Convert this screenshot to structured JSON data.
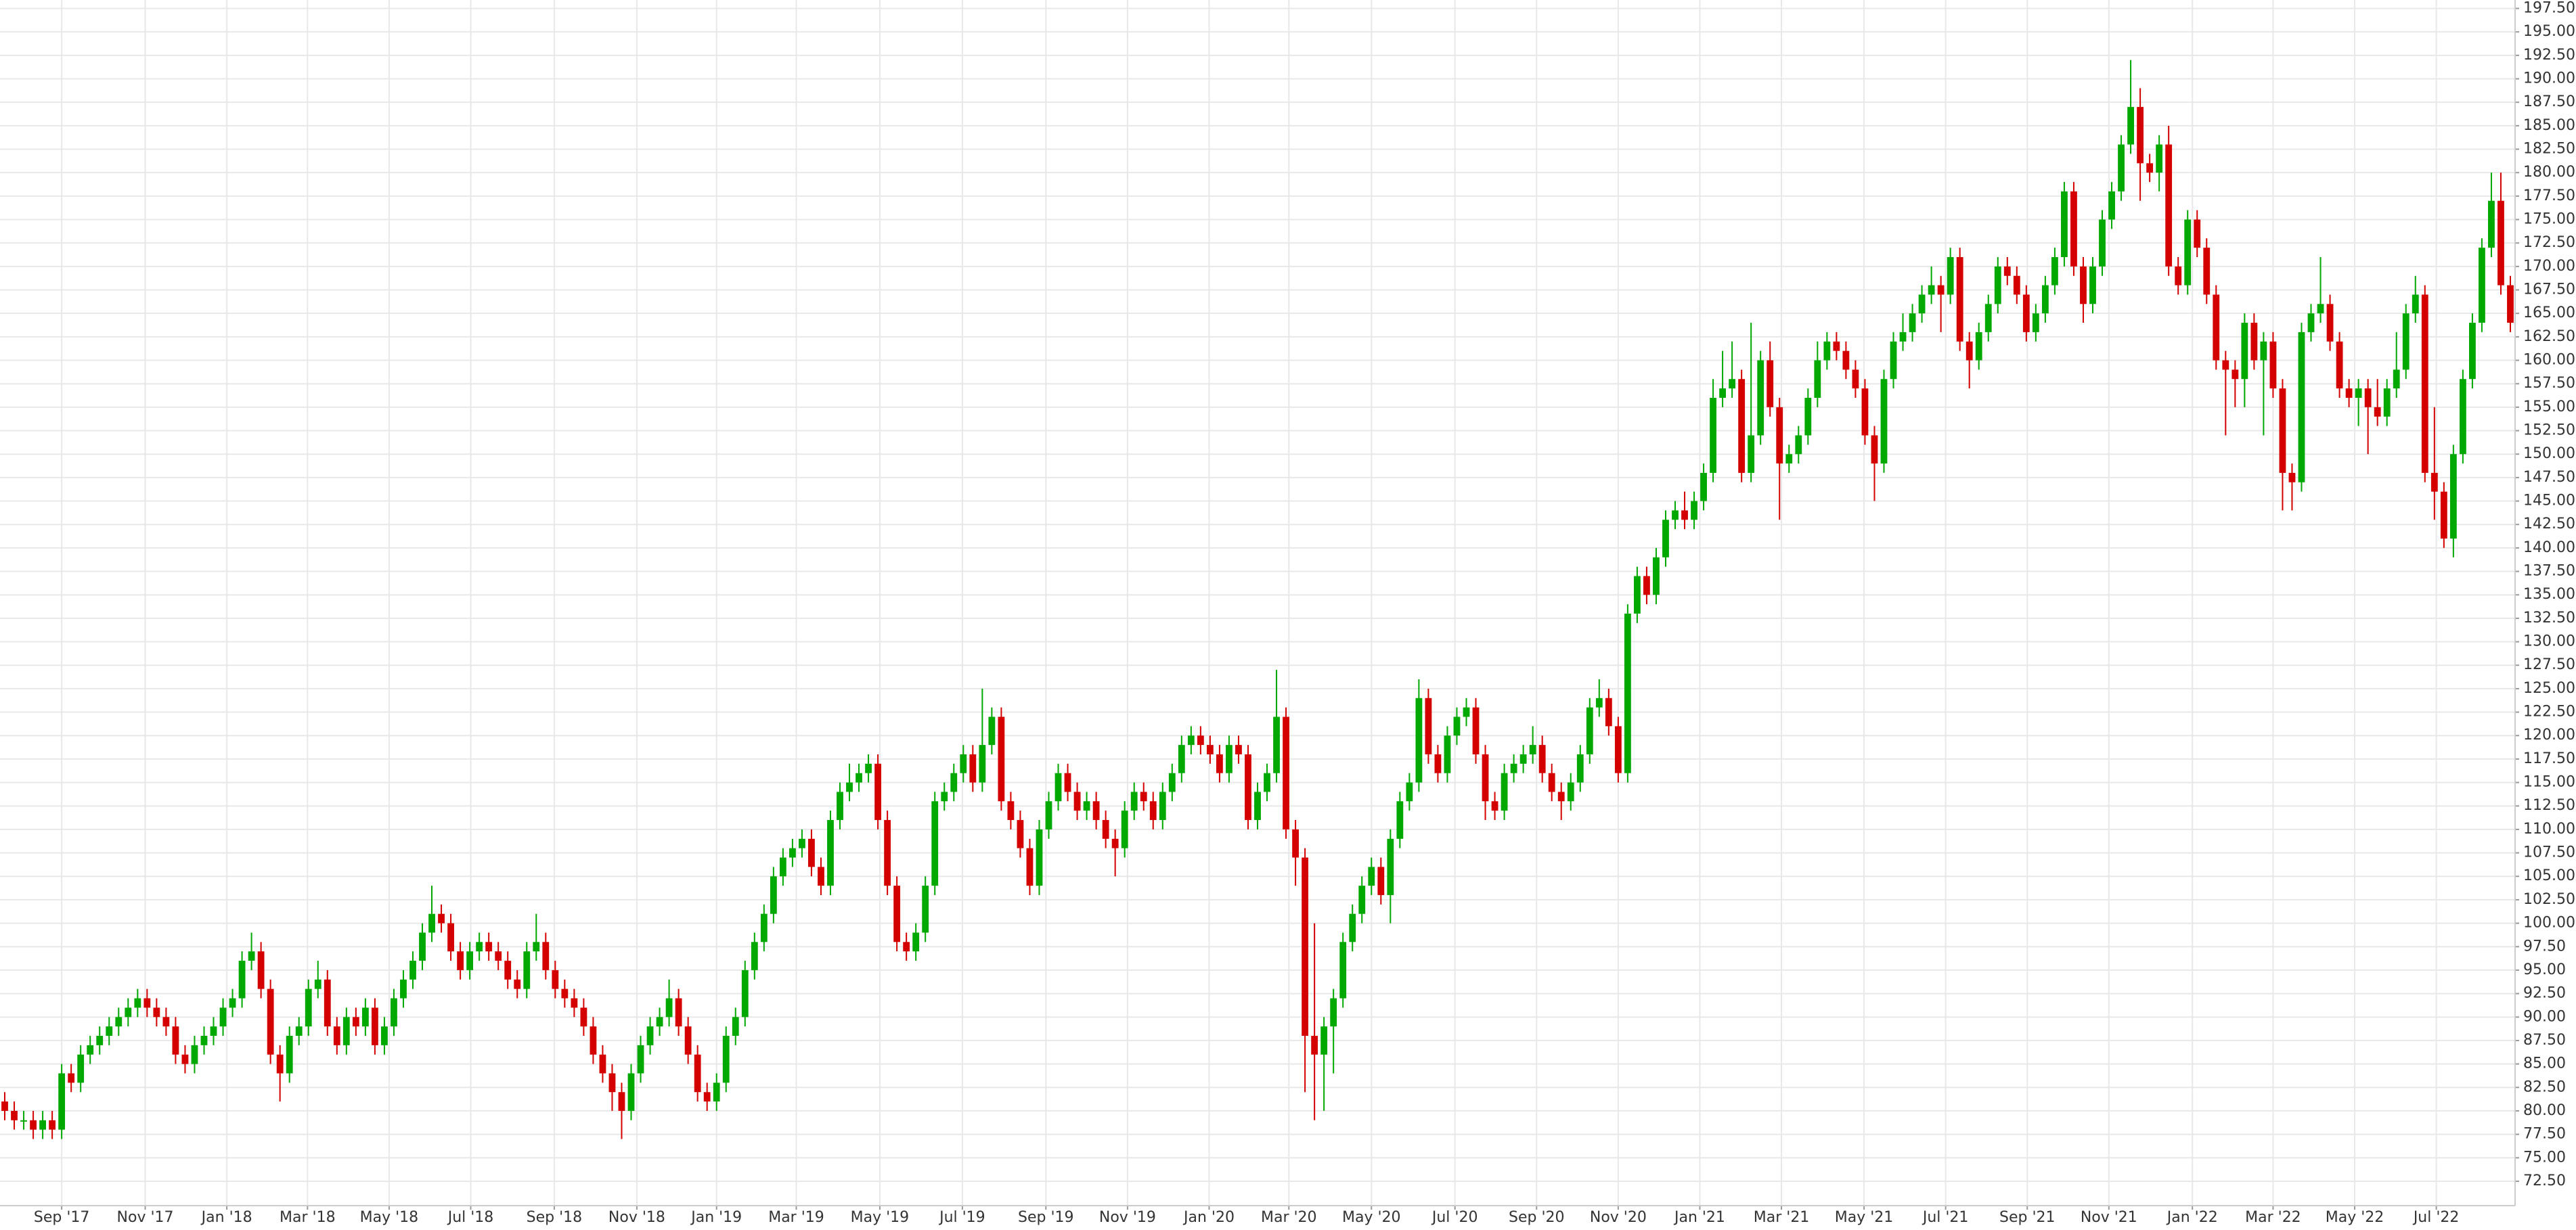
{
  "chart_data": {
    "type": "candlestick",
    "up_color": "#00a800",
    "down_color": "#d40000",
    "grid": true,
    "xlim": [
      -0.5,
      264.5
    ],
    "xticks": [
      {
        "value": 6.0,
        "label": "Sep '17"
      },
      {
        "value": 14.8,
        "label": "Nov '17"
      },
      {
        "value": 23.4,
        "label": "Jan '18"
      },
      {
        "value": 31.9,
        "label": "Mar '18"
      },
      {
        "value": 40.5,
        "label": "May '18"
      },
      {
        "value": 49.1,
        "label": "Jul '18"
      },
      {
        "value": 57.9,
        "label": "Sep '18"
      },
      {
        "value": 66.6,
        "label": "Nov '18"
      },
      {
        "value": 75.0,
        "label": "Jan '19"
      },
      {
        "value": 83.4,
        "label": "Mar '19"
      },
      {
        "value": 92.2,
        "label": "May '19"
      },
      {
        "value": 100.9,
        "label": "Jul '19"
      },
      {
        "value": 109.7,
        "label": "Sep '19"
      },
      {
        "value": 118.3,
        "label": "Nov '19"
      },
      {
        "value": 126.9,
        "label": "Jan '20"
      },
      {
        "value": 135.3,
        "label": "Mar '20"
      },
      {
        "value": 144.0,
        "label": "May '20"
      },
      {
        "value": 152.8,
        "label": "Jul '20"
      },
      {
        "value": 161.4,
        "label": "Sep '20"
      },
      {
        "value": 170.0,
        "label": "Nov '20"
      },
      {
        "value": 178.6,
        "label": "Jan '21"
      },
      {
        "value": 187.2,
        "label": "Mar '21"
      },
      {
        "value": 195.9,
        "label": "May '21"
      },
      {
        "value": 204.5,
        "label": "Jul '21"
      },
      {
        "value": 213.1,
        "label": "Sep '21"
      },
      {
        "value": 221.7,
        "label": "Nov '21"
      },
      {
        "value": 230.5,
        "label": "Jan '22"
      },
      {
        "value": 239.0,
        "label": "Mar '22"
      },
      {
        "value": 247.6,
        "label": "May '22"
      },
      {
        "value": 256.2,
        "label": "Jul '22"
      }
    ],
    "ylim": [
      69.9,
      198.4
    ],
    "yticks": [
      {
        "value": 72.5,
        "label": "72.50"
      },
      {
        "value": 75,
        "label": "75.00"
      },
      {
        "value": 77.5,
        "label": "77.50"
      },
      {
        "value": 80,
        "label": "80.00"
      },
      {
        "value": 82.5,
        "label": "82.50"
      },
      {
        "value": 85,
        "label": "85.00"
      },
      {
        "value": 87.5,
        "label": "87.50"
      },
      {
        "value": 90,
        "label": "90.00"
      },
      {
        "value": 92.5,
        "label": "92.50"
      },
      {
        "value": 95,
        "label": "95.00"
      },
      {
        "value": 97.5,
        "label": "97.50"
      },
      {
        "value": 100,
        "label": "100.00"
      },
      {
        "value": 102.5,
        "label": "102.50"
      },
      {
        "value": 105,
        "label": "105.00"
      },
      {
        "value": 107.5,
        "label": "107.50"
      },
      {
        "value": 110,
        "label": "110.00"
      },
      {
        "value": 112.5,
        "label": "112.50"
      },
      {
        "value": 115,
        "label": "115.00"
      },
      {
        "value": 117.5,
        "label": "117.50"
      },
      {
        "value": 120,
        "label": "120.00"
      },
      {
        "value": 122.5,
        "label": "122.50"
      },
      {
        "value": 125,
        "label": "125.00"
      },
      {
        "value": 127.5,
        "label": "127.50"
      },
      {
        "value": 130,
        "label": "130.00"
      },
      {
        "value": 132.5,
        "label": "132.50"
      },
      {
        "value": 135,
        "label": "135.00"
      },
      {
        "value": 137.5,
        "label": "137.50"
      },
      {
        "value": 140,
        "label": "140.00"
      },
      {
        "value": 142.5,
        "label": "142.50"
      },
      {
        "value": 145,
        "label": "145.00"
      },
      {
        "value": 147.5,
        "label": "147.50"
      },
      {
        "value": 150,
        "label": "150.00"
      },
      {
        "value": 152.5,
        "label": "152.50"
      },
      {
        "value": 155,
        "label": "155.00"
      },
      {
        "value": 157.5,
        "label": "157.50"
      },
      {
        "value": 160,
        "label": "160.00"
      },
      {
        "value": 162.5,
        "label": "162.50"
      },
      {
        "value": 165,
        "label": "165.00"
      },
      {
        "value": 167.5,
        "label": "167.50"
      },
      {
        "value": 170,
        "label": "170.00"
      },
      {
        "value": 172.5,
        "label": "172.50"
      },
      {
        "value": 175,
        "label": "175.00"
      },
      {
        "value": 177.5,
        "label": "177.50"
      },
      {
        "value": 180,
        "label": "180.00"
      },
      {
        "value": 182.5,
        "label": "182.50"
      },
      {
        "value": 185,
        "label": "185.00"
      },
      {
        "value": 187.5,
        "label": "187.50"
      },
      {
        "value": 190,
        "label": "190.00"
      },
      {
        "value": 192.5,
        "label": "192.50"
      },
      {
        "value": 195,
        "label": "195.00"
      },
      {
        "value": 197.5,
        "label": "197.50"
      }
    ],
    "open": [
      81,
      80,
      79,
      79,
      78,
      79,
      78,
      84,
      83,
      86,
      87,
      88,
      89,
      90,
      91,
      92,
      91,
      90,
      89,
      86,
      85,
      87,
      88,
      89,
      91,
      92,
      96,
      97,
      93,
      86,
      84,
      88,
      89,
      93,
      94,
      89,
      87,
      90,
      89,
      91,
      87,
      89,
      92,
      94,
      96,
      99,
      101,
      100,
      97,
      95,
      97,
      98,
      97,
      96,
      94,
      93,
      97,
      98,
      95,
      93,
      92,
      91,
      89,
      86,
      84,
      82,
      80,
      84,
      87,
      89,
      90,
      92,
      89,
      86,
      82,
      81,
      83,
      88,
      90,
      95,
      98,
      101,
      105,
      107,
      108,
      109,
      106,
      104,
      111,
      114,
      115,
      116,
      117,
      111,
      104,
      98,
      97,
      99,
      104,
      113,
      114,
      116,
      118,
      115,
      119,
      122,
      113,
      111,
      108,
      104,
      110,
      113,
      116,
      114,
      112,
      113,
      111,
      109,
      108,
      112,
      114,
      113,
      111,
      114,
      116,
      119,
      120,
      119,
      118,
      116,
      119,
      118,
      111,
      114,
      116,
      122,
      110,
      107,
      88,
      86,
      89,
      92,
      98,
      101,
      104,
      106,
      103,
      109,
      113,
      115,
      124,
      118,
      116,
      120,
      122,
      123,
      118,
      113,
      112,
      116,
      117,
      118,
      119,
      116,
      114,
      113,
      115,
      118,
      123,
      124,
      121,
      116,
      133,
      137,
      135,
      139,
      143,
      144,
      143,
      145,
      148,
      156,
      157,
      158,
      148,
      152,
      160,
      155,
      149,
      150,
      152,
      156,
      160,
      162,
      161,
      159,
      157,
      152,
      149,
      158,
      162,
      163,
      165,
      167,
      168,
      167,
      171,
      162,
      160,
      163,
      166,
      170,
      169,
      167,
      163,
      165,
      168,
      171,
      178,
      170,
      166,
      170,
      175,
      178,
      183,
      187,
      181,
      180,
      183,
      170,
      168,
      175,
      172,
      167,
      160,
      159,
      158,
      164,
      160,
      162,
      157,
      148,
      147,
      163,
      165,
      166,
      162,
      157,
      156,
      157,
      155,
      154,
      157,
      159,
      165,
      167,
      148,
      146,
      141,
      150,
      158,
      164,
      172,
      177,
      168
    ],
    "high": [
      82,
      81,
      80,
      80,
      80,
      80,
      85,
      85,
      87,
      88,
      89,
      90,
      91,
      92,
      93,
      93,
      92,
      91,
      90,
      87,
      88,
      89,
      90,
      92,
      93,
      97,
      99,
      98,
      94,
      87,
      89,
      90,
      94,
      96,
      95,
      90,
      91,
      91,
      92,
      92,
      90,
      93,
      95,
      97,
      100,
      104,
      102,
      101,
      98,
      98,
      99,
      99,
      98,
      97,
      95,
      98,
      101,
      99,
      96,
      94,
      93,
      92,
      90,
      87,
      85,
      83,
      85,
      88,
      90,
      91,
      94,
      93,
      90,
      87,
      83,
      84,
      89,
      91,
      96,
      99,
      102,
      106,
      108,
      109,
      110,
      110,
      107,
      112,
      115,
      117,
      117,
      118,
      118,
      112,
      105,
      99,
      100,
      105,
      114,
      115,
      117,
      119,
      119,
      125,
      123,
      123,
      114,
      112,
      109,
      111,
      114,
      117,
      117,
      115,
      114,
      114,
      112,
      110,
      113,
      115,
      115,
      114,
      115,
      117,
      120,
      121,
      121,
      120,
      119,
      120,
      120,
      119,
      115,
      117,
      127,
      123,
      111,
      108,
      100,
      90,
      93,
      99,
      102,
      105,
      107,
      107,
      110,
      114,
      116,
      126,
      125,
      119,
      121,
      123,
      124,
      124,
      119,
      114,
      117,
      118,
      119,
      121,
      120,
      117,
      115,
      116,
      119,
      124,
      126,
      125,
      122,
      134,
      138,
      138,
      140,
      144,
      145,
      146,
      146,
      149,
      158,
      161,
      162,
      159,
      164,
      161,
      162,
      156,
      151,
      153,
      157,
      162,
      163,
      163,
      162,
      160,
      158,
      153,
      159,
      163,
      165,
      166,
      168,
      170,
      169,
      172,
      172,
      163,
      164,
      167,
      171,
      171,
      170,
      168,
      166,
      169,
      172,
      179,
      179,
      171,
      171,
      176,
      179,
      184,
      192,
      189,
      182,
      184,
      185,
      171,
      176,
      176,
      173,
      168,
      161,
      160,
      165,
      165,
      163,
      163,
      158,
      149,
      164,
      166,
      171,
      167,
      163,
      158,
      158,
      158,
      158,
      158,
      163,
      166,
      169,
      168,
      155,
      147,
      151,
      159,
      165,
      173,
      180,
      180,
      169
    ],
    "low": [
      79,
      78,
      78,
      77,
      77,
      77,
      77,
      82,
      82,
      85,
      86,
      87,
      88,
      89,
      90,
      90,
      89,
      88,
      85,
      84,
      84,
      86,
      87,
      88,
      90,
      91,
      95,
      92,
      85,
      81,
      83,
      87,
      88,
      92,
      88,
      86,
      86,
      88,
      88,
      86,
      86,
      88,
      91,
      93,
      95,
      98,
      99,
      96,
      94,
      94,
      96,
      96,
      95,
      93,
      92,
      92,
      96,
      94,
      92,
      91,
      90,
      88,
      85,
      83,
      80,
      77,
      79,
      83,
      86,
      88,
      89,
      88,
      85,
      81,
      80,
      80,
      82,
      87,
      89,
      94,
      97,
      100,
      104,
      106,
      107,
      105,
      103,
      103,
      110,
      113,
      114,
      115,
      110,
      103,
      97,
      96,
      96,
      98,
      103,
      112,
      113,
      115,
      114,
      114,
      118,
      112,
      110,
      107,
      103,
      103,
      109,
      112,
      113,
      111,
      111,
      110,
      108,
      105,
      107,
      111,
      112,
      110,
      110,
      113,
      115,
      118,
      118,
      117,
      115,
      115,
      117,
      110,
      110,
      113,
      115,
      109,
      104,
      82,
      79,
      80,
      84,
      91,
      97,
      100,
      103,
      102,
      100,
      108,
      112,
      114,
      117,
      115,
      115,
      119,
      121,
      117,
      111,
      111,
      111,
      115,
      116,
      117,
      115,
      113,
      111,
      112,
      114,
      117,
      122,
      120,
      115,
      115,
      132,
      134,
      134,
      138,
      142,
      142,
      142,
      144,
      147,
      155,
      156,
      147,
      147,
      151,
      154,
      143,
      148,
      149,
      151,
      155,
      159,
      160,
      158,
      156,
      151,
      145,
      148,
      157,
      161,
      162,
      164,
      166,
      163,
      166,
      161,
      157,
      159,
      162,
      165,
      168,
      166,
      162,
      162,
      164,
      167,
      170,
      169,
      164,
      165,
      169,
      174,
      177,
      182,
      177,
      179,
      178,
      169,
      167,
      167,
      171,
      166,
      159,
      152,
      155,
      155,
      159,
      152,
      156,
      144,
      144,
      146,
      162,
      164,
      161,
      156,
      155,
      153,
      150,
      153,
      153,
      156,
      158,
      164,
      147,
      143,
      140,
      139,
      149,
      157,
      163,
      171,
      167,
      163
    ],
    "close": [
      80,
      79,
      79,
      78,
      79,
      78,
      84,
      83,
      86,
      87,
      88,
      89,
      90,
      91,
      92,
      91,
      90,
      89,
      86,
      85,
      87,
      88,
      89,
      91,
      92,
      96,
      97,
      93,
      86,
      84,
      88,
      89,
      93,
      94,
      89,
      87,
      90,
      89,
      91,
      87,
      89,
      92,
      94,
      96,
      99,
      101,
      100,
      97,
      95,
      97,
      98,
      97,
      96,
      94,
      93,
      97,
      98,
      95,
      93,
      92,
      91,
      89,
      86,
      84,
      82,
      80,
      84,
      87,
      89,
      90,
      92,
      89,
      86,
      82,
      81,
      83,
      88,
      90,
      95,
      98,
      101,
      105,
      107,
      108,
      109,
      106,
      104,
      111,
      114,
      115,
      116,
      117,
      111,
      104,
      98,
      97,
      99,
      104,
      113,
      114,
      116,
      118,
      115,
      119,
      122,
      113,
      111,
      108,
      104,
      110,
      113,
      116,
      114,
      112,
      113,
      111,
      109,
      108,
      112,
      114,
      113,
      111,
      114,
      116,
      119,
      120,
      119,
      118,
      116,
      119,
      118,
      111,
      114,
      116,
      122,
      110,
      107,
      88,
      86,
      89,
      92,
      98,
      101,
      104,
      106,
      103,
      109,
      113,
      115,
      124,
      118,
      116,
      120,
      122,
      123,
      118,
      113,
      112,
      116,
      117,
      118,
      119,
      116,
      114,
      113,
      115,
      118,
      123,
      124,
      121,
      116,
      133,
      137,
      135,
      139,
      143,
      144,
      143,
      145,
      148,
      156,
      157,
      158,
      148,
      152,
      160,
      155,
      149,
      150,
      152,
      156,
      160,
      162,
      161,
      159,
      157,
      152,
      149,
      158,
      162,
      163,
      165,
      167,
      168,
      167,
      171,
      162,
      160,
      163,
      166,
      170,
      169,
      167,
      163,
      165,
      168,
      171,
      178,
      170,
      166,
      170,
      175,
      178,
      183,
      187,
      181,
      180,
      183,
      170,
      168,
      175,
      172,
      167,
      160,
      159,
      158,
      164,
      160,
      162,
      157,
      148,
      147,
      163,
      165,
      166,
      162,
      157,
      156,
      157,
      155,
      154,
      157,
      159,
      165,
      167,
      148,
      146,
      141,
      150,
      158,
      164,
      172,
      177,
      168,
      164
    ]
  }
}
